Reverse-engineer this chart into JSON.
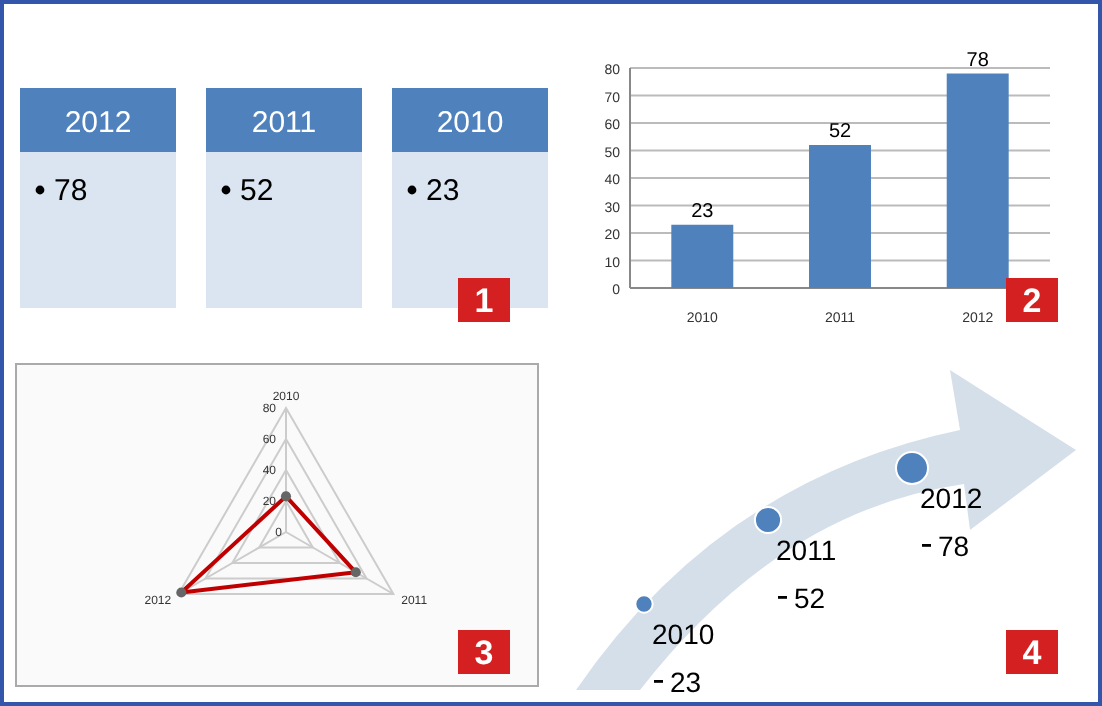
{
  "chart_data": [
    {
      "type": "other",
      "categories": [
        "2012",
        "2011",
        "2010"
      ],
      "values": [
        78,
        52,
        23
      ],
      "data_labels": true,
      "color": "#4f81bd",
      "colors": [
        "#dbe5f1",
        "#dbe5f1",
        "#dbe5f1"
      ],
      "annotations": [
        "1"
      ]
    },
    {
      "type": "bar",
      "categories": [
        "2010",
        "2011",
        "2012"
      ],
      "values": [
        23,
        52,
        78
      ],
      "color": "#4f81bd",
      "ylim": [
        0,
        80
      ],
      "yticks": [
        0,
        10,
        20,
        30,
        40,
        50,
        60,
        70,
        80
      ],
      "data_labels": true,
      "grid": "y",
      "annotations": [
        "2"
      ]
    },
    {
      "type": "radar",
      "categories": [
        "2010",
        "2011",
        "2012"
      ],
      "series": [
        {
          "color": "#c00000",
          "values": [
            23,
            52,
            78
          ]
        }
      ],
      "ylim": [
        0,
        80
      ],
      "yticks": [
        0,
        20,
        40,
        60,
        80
      ],
      "marker": "circle",
      "annotations": [
        "3"
      ]
    },
    {
      "type": "other",
      "categories": [
        "2010",
        "2011",
        "2012"
      ],
      "values": [
        23,
        52,
        78
      ],
      "data_labels": true,
      "color": "#4f81bd",
      "annotations": [
        "4"
      ]
    }
  ]
}
